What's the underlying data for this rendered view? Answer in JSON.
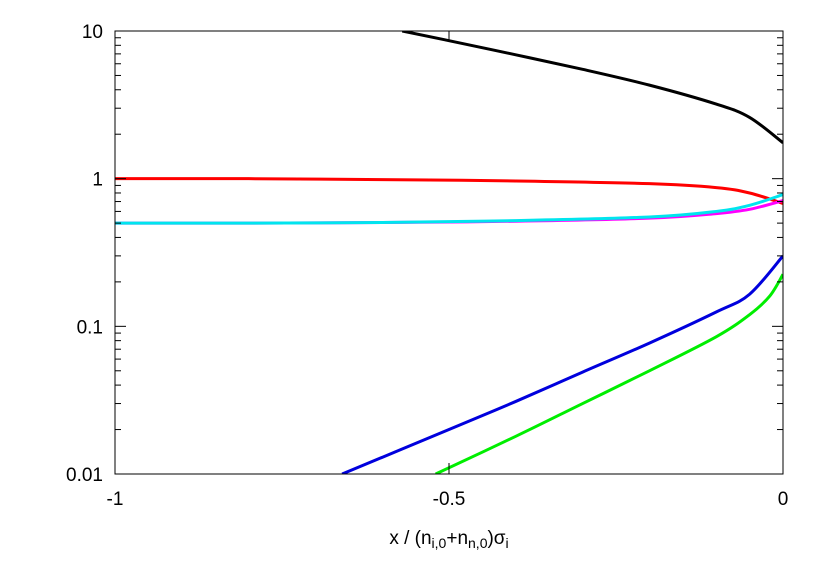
{
  "chart_data": {
    "type": "line",
    "xlabel": {
      "parts": [
        "x / (n",
        "i,0",
        "+n",
        "n,0",
        ")σ",
        "i"
      ]
    },
    "ylabel": "",
    "xlim": [
      -1,
      0
    ],
    "ylim": [
      0.01,
      10
    ],
    "yscale": "log",
    "grid": false,
    "x_ticks": [
      {
        "value": -1,
        "label": "-1"
      },
      {
        "value": -0.5,
        "label": "-0.5"
      },
      {
        "value": 0,
        "label": "0"
      }
    ],
    "y_ticks": [
      {
        "value": 10,
        "label": "10"
      },
      {
        "value": 1,
        "label": "1"
      },
      {
        "value": 0.1,
        "label": "0.1"
      },
      {
        "value": 0.01,
        "label": "0.01"
      }
    ],
    "series": [
      {
        "color": "#000000",
        "points": [
          [
            -0.57,
            10.0
          ],
          [
            -0.5,
            8.6
          ],
          [
            -0.4,
            6.9
          ],
          [
            -0.3,
            5.5
          ],
          [
            -0.2,
            4.3
          ],
          [
            -0.1,
            3.2
          ],
          [
            -0.05,
            2.6
          ],
          [
            0.0,
            1.75
          ]
        ]
      },
      {
        "color": "#ff0000",
        "points": [
          [
            -1.0,
            1.0
          ],
          [
            -0.8,
            1.0
          ],
          [
            -0.6,
            0.985
          ],
          [
            -0.4,
            0.965
          ],
          [
            -0.2,
            0.925
          ],
          [
            -0.1,
            0.87
          ],
          [
            -0.05,
            0.8
          ],
          [
            0.0,
            0.68
          ]
        ]
      },
      {
        "color": "#ff00ff",
        "points": [
          [
            -1.0,
            0.5
          ],
          [
            -0.8,
            0.5
          ],
          [
            -0.6,
            0.505
          ],
          [
            -0.4,
            0.515
          ],
          [
            -0.2,
            0.54
          ],
          [
            -0.1,
            0.58
          ],
          [
            -0.05,
            0.62
          ],
          [
            0.0,
            0.71
          ]
        ]
      },
      {
        "color": "#00e5ee",
        "points": [
          [
            -1.0,
            0.5
          ],
          [
            -0.8,
            0.5
          ],
          [
            -0.6,
            0.505
          ],
          [
            -0.4,
            0.52
          ],
          [
            -0.2,
            0.55
          ],
          [
            -0.1,
            0.6
          ],
          [
            -0.05,
            0.66
          ],
          [
            0.0,
            0.78
          ]
        ]
      },
      {
        "color": "#0000dd",
        "points": [
          [
            -0.66,
            0.01
          ],
          [
            -0.5,
            0.02
          ],
          [
            -0.4,
            0.031
          ],
          [
            -0.3,
            0.049
          ],
          [
            -0.2,
            0.077
          ],
          [
            -0.1,
            0.125
          ],
          [
            -0.05,
            0.165
          ],
          [
            0.0,
            0.3
          ]
        ]
      },
      {
        "color": "#00ee00",
        "points": [
          [
            -0.52,
            0.01
          ],
          [
            -0.4,
            0.018
          ],
          [
            -0.3,
            0.03
          ],
          [
            -0.2,
            0.05
          ],
          [
            -0.1,
            0.085
          ],
          [
            -0.05,
            0.12
          ],
          [
            -0.02,
            0.16
          ],
          [
            0.0,
            0.225
          ]
        ]
      }
    ]
  }
}
